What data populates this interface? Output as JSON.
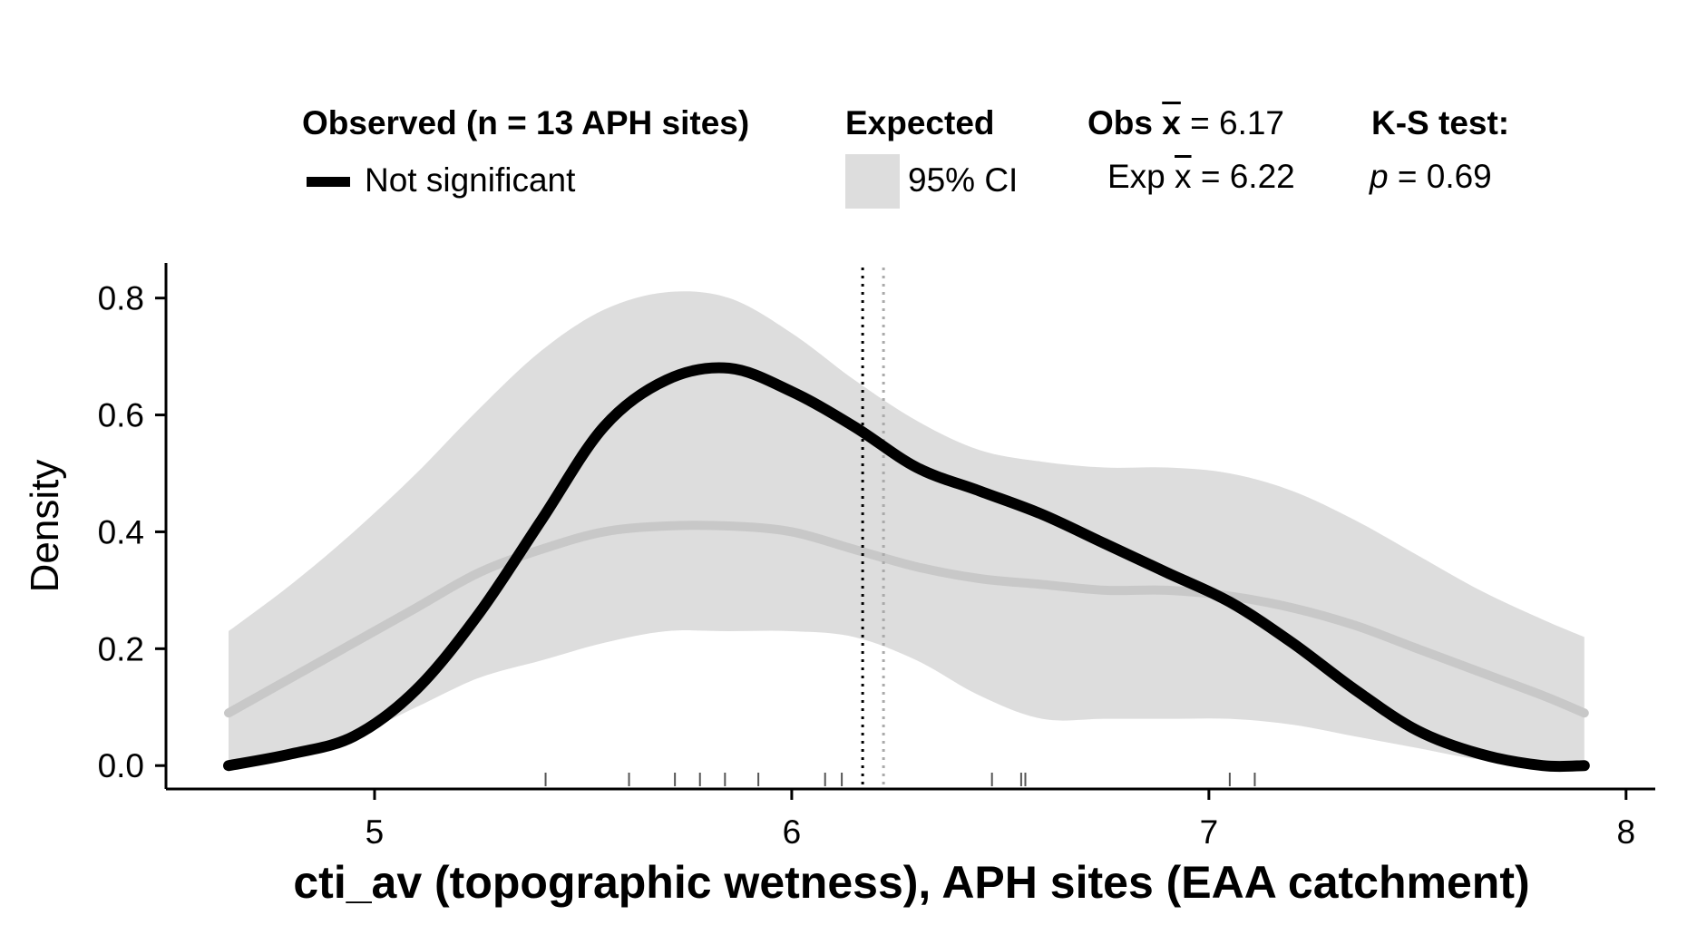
{
  "legend": {
    "observed_title": "Observed (n = 13 APH sites)",
    "observed_item": "Not significant",
    "expected_title": "Expected",
    "expected_item": "95% CI",
    "obs_mean_label": "Obs",
    "obs_mean_symbol": "x",
    "obs_mean_value": "= 6.17",
    "exp_mean_label": "Exp",
    "exp_mean_symbol": "x",
    "exp_mean_value": "= 6.22",
    "ks_title": "K-S test:",
    "ks_p_symbol": "p",
    "ks_p_value": "= 0.69"
  },
  "colors": {
    "observed_line": "#000000",
    "expected_line": "#c8c8c8",
    "ci_band": "#dddddd",
    "obs_mean_line": "#000000",
    "exp_mean_line": "#aaaaaa"
  },
  "chart_data": {
    "type": "line",
    "xlabel": "cti_av (topographic wetness), APH sites (EAA catchment)",
    "ylabel": "Density",
    "xlim": [
      4.5,
      8.07
    ],
    "ylim": [
      -0.04,
      0.86
    ],
    "xticks": [
      5,
      6,
      7,
      8
    ],
    "yticks": [
      0.0,
      0.2,
      0.4,
      0.6,
      0.8
    ],
    "ytick_labels": [
      "0.0",
      "0.2",
      "0.4",
      "0.6",
      "0.8"
    ],
    "grid": false,
    "legend_position": "top",
    "x": [
      4.65,
      4.8,
      4.95,
      5.1,
      5.25,
      5.4,
      5.55,
      5.7,
      5.85,
      6.0,
      6.15,
      6.3,
      6.45,
      6.6,
      6.75,
      6.9,
      7.05,
      7.2,
      7.35,
      7.5,
      7.65,
      7.8,
      7.9
    ],
    "series": [
      {
        "name": "Not significant",
        "values": [
          0.0,
          0.02,
          0.05,
          0.13,
          0.26,
          0.42,
          0.58,
          0.66,
          0.68,
          0.64,
          0.58,
          0.51,
          0.47,
          0.43,
          0.38,
          0.33,
          0.28,
          0.21,
          0.13,
          0.06,
          0.02,
          0.0,
          0.0
        ]
      },
      {
        "values": [
          0.09,
          0.15,
          0.21,
          0.27,
          0.33,
          0.37,
          0.4,
          0.41,
          0.41,
          0.4,
          0.37,
          0.34,
          0.32,
          0.31,
          0.3,
          0.3,
          0.29,
          0.27,
          0.24,
          0.2,
          0.16,
          0.12,
          0.09
        ]
      }
    ],
    "ci": {
      "name": "95% CI",
      "lower": [
        0.0,
        0.02,
        0.05,
        0.1,
        0.15,
        0.18,
        0.21,
        0.23,
        0.23,
        0.23,
        0.22,
        0.18,
        0.12,
        0.08,
        0.08,
        0.08,
        0.08,
        0.07,
        0.05,
        0.03,
        0.01,
        0.0,
        0.0
      ],
      "upper": [
        0.23,
        0.31,
        0.4,
        0.5,
        0.61,
        0.71,
        0.78,
        0.81,
        0.8,
        0.74,
        0.66,
        0.59,
        0.54,
        0.52,
        0.51,
        0.51,
        0.5,
        0.47,
        0.42,
        0.36,
        0.3,
        0.25,
        0.22
      ]
    },
    "obs_mean": 6.17,
    "exp_mean": 6.22,
    "rug": [
      5.41,
      5.61,
      5.72,
      5.78,
      5.84,
      5.92,
      6.08,
      6.12,
      6.48,
      6.55,
      6.56,
      7.05,
      7.11
    ]
  }
}
